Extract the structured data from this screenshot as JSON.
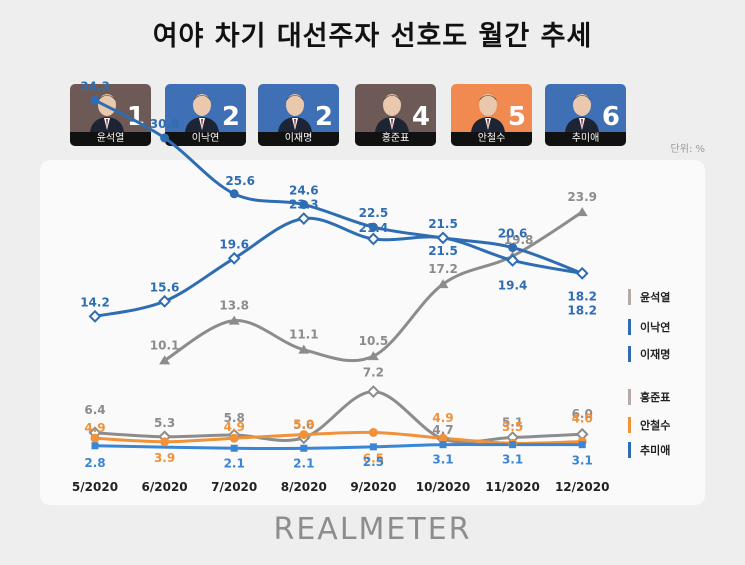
{
  "title": "여야 차기 대선주자 선호도 월간 추세",
  "unit": "단위: %",
  "logo": "REALMETER",
  "candidates": [
    {
      "name": "윤석열",
      "rank": "1",
      "bg": "#6d5a56"
    },
    {
      "name": "이낙연",
      "rank": "2",
      "bg": "#3f6fb4"
    },
    {
      "name": "이재명",
      "rank": "2",
      "bg": "#3f6fb4"
    },
    {
      "name": "홍준표",
      "rank": "4",
      "bg": "#6d5a56"
    },
    {
      "name": "안철수",
      "rank": "5",
      "bg": "#f08a50"
    },
    {
      "name": "추미애",
      "rank": "6",
      "bg": "#3f6fb4"
    }
  ],
  "chart_data": {
    "type": "line",
    "title": "",
    "xlabel": "",
    "ylabel": "",
    "categories": [
      "5/2020",
      "6/2020",
      "7/2020",
      "8/2020",
      "9/2020",
      "10/2020",
      "11/2020",
      "12/2020"
    ],
    "legend_position": "right",
    "series": [
      {
        "name": "윤석열",
        "color": "#8c8c8c",
        "marker": "triangle",
        "values": [
          null,
          10.1,
          13.8,
          11.1,
          10.5,
          17.2,
          19.8,
          23.9
        ]
      },
      {
        "name": "이낙연",
        "color": "#2f6db3",
        "marker": "circle",
        "values": [
          34.3,
          30.8,
          25.6,
          24.6,
          22.5,
          21.5,
          20.6,
          18.2
        ]
      },
      {
        "name": "이재명",
        "color": "#2f6db3",
        "marker": "diamond",
        "values": [
          14.2,
          15.6,
          19.6,
          23.3,
          21.4,
          21.5,
          19.4,
          18.2
        ]
      },
      {
        "name": "홍준표",
        "color": "#8c8c8c",
        "marker": "diamond",
        "values": [
          6.4,
          5.3,
          5.8,
          5.0,
          7.2,
          4.7,
          5.1,
          6.0
        ]
      },
      {
        "name": "안철수",
        "color": "#f0923a",
        "marker": "circle",
        "values": [
          4.9,
          3.9,
          4.9,
          5.9,
          6.5,
          4.9,
          3.5,
          4.0
        ]
      },
      {
        "name": "추미애",
        "color": "#3a86d4",
        "marker": "square",
        "values": [
          2.8,
          null,
          2.1,
          2.1,
          2.5,
          3.1,
          3.1,
          3.1
        ]
      }
    ]
  }
}
